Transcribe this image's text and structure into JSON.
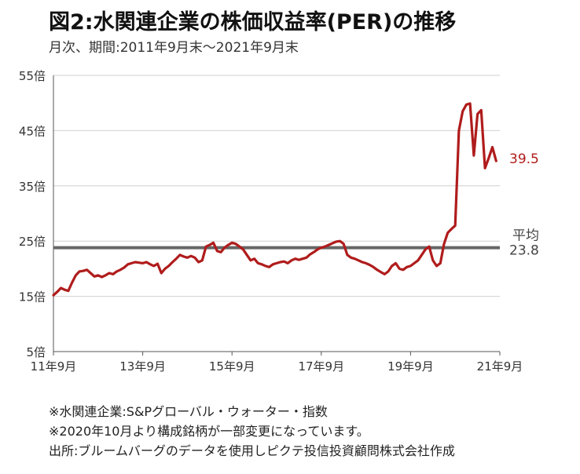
{
  "header": {
    "title": "図2:水関連企業の株価収益率(PER)の推移",
    "subtitle": "月次、期間:2011年9月末～2021年9月末"
  },
  "notes": [
    "※水関連企業:S&Pグローバル・ウォーター・指数",
    "※2020年10月より構成銘柄が一部変更になっています。",
    "出所:ブルームバーグのデータを使用しピクテ投信投資顧問株式会社作成"
  ],
  "chart_data": {
    "type": "line",
    "title": "図2:水関連企業の株価収益率(PER)の推移",
    "xlabel": "",
    "ylabel": "",
    "ylim": [
      5,
      55
    ],
    "yticks": [
      5,
      15,
      25,
      35,
      45,
      55
    ],
    "ytick_labels": [
      "5倍",
      "15倍",
      "25倍",
      "35倍",
      "45倍",
      "55倍"
    ],
    "xlim": [
      0,
      120
    ],
    "xticks": [
      0,
      24,
      48,
      72,
      96,
      120
    ],
    "xtick_labels": [
      "11年9月",
      "13年9月",
      "15年9月",
      "17年9月",
      "19年9月",
      "21年9月"
    ],
    "grid": true,
    "series": [
      {
        "color": "#b01c1c",
        "values": [
          15.2,
          15.8,
          16.5,
          16.2,
          16.0,
          17.5,
          18.8,
          19.5,
          19.6,
          19.8,
          19.2,
          18.6,
          18.8,
          18.5,
          18.8,
          19.2,
          19.0,
          19.5,
          19.8,
          20.2,
          20.8,
          21.0,
          21.2,
          21.1,
          21.0,
          21.2,
          20.8,
          20.5,
          20.9,
          19.2,
          20.0,
          20.5,
          21.2,
          21.8,
          22.5,
          22.2,
          22.0,
          22.3,
          22.0,
          21.2,
          21.5,
          24.0,
          24.3,
          24.7,
          23.2,
          23.0,
          23.8,
          24.3,
          24.7,
          24.5,
          24.0,
          23.5,
          22.5,
          21.5,
          21.8,
          21.0,
          20.8,
          20.5,
          20.3,
          20.8,
          21.0,
          21.2,
          21.3,
          21.0,
          21.5,
          21.8,
          21.6,
          21.8,
          22.0,
          22.6,
          23.0,
          23.5,
          23.8,
          24.0,
          24.3,
          24.6,
          24.9,
          25.0,
          24.5,
          22.5,
          22.0,
          21.8,
          21.5,
          21.2,
          21.0,
          20.7,
          20.3,
          19.8,
          19.4,
          19.0,
          19.5,
          20.5,
          21.0,
          20.0,
          19.8,
          20.3,
          20.5,
          21.0,
          21.5,
          22.5,
          23.5,
          24.0,
          21.5,
          20.5,
          21.0,
          24.5,
          26.5,
          27.2,
          27.8,
          45.0,
          48.5,
          49.7,
          49.9,
          40.5,
          48.0,
          48.7,
          38.2,
          40.0,
          42.0,
          39.5
        ]
      },
      {
        "color": "#666666",
        "values": [
          23.8
        ]
      }
    ],
    "annotations": {
      "last_value_label": "39.5",
      "average_label": "平均",
      "average_value": "23.8"
    }
  },
  "colors": {
    "line": "#b01c1c",
    "average": "#666666",
    "grid": "#d0d0d0",
    "axis": "#555555"
  }
}
